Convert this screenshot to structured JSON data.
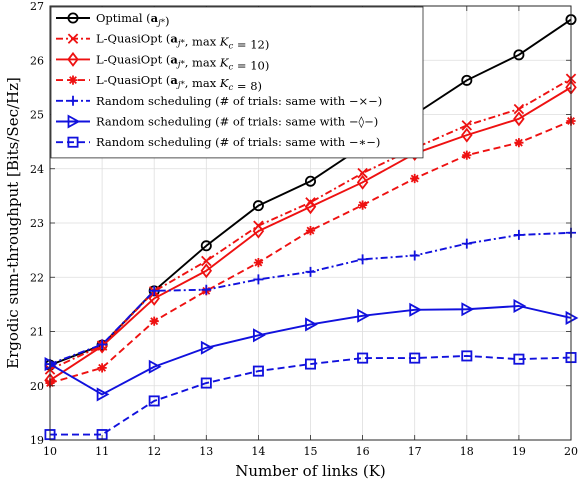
{
  "chart_data": {
    "type": "line",
    "title": "",
    "xlabel": "Number of links (K)",
    "ylabel": "Ergodic sum-throughput [Bits/Sec/Hz]",
    "xlim": [
      10,
      20
    ],
    "ylim": [
      19,
      27
    ],
    "x": [
      10,
      11,
      12,
      13,
      14,
      15,
      16,
      17,
      18,
      19,
      20
    ],
    "xticks": [
      "10",
      "11",
      "12",
      "13",
      "14",
      "15",
      "16",
      "17",
      "18",
      "19",
      "20"
    ],
    "yticks": [
      "19",
      "20",
      "21",
      "22",
      "23",
      "24",
      "25",
      "26",
      "27"
    ],
    "grid": true,
    "legend_position": "top-left",
    "series": [
      {
        "name": "Optimal (a_j*)",
        "color": "#000000",
        "style": "solid",
        "marker": "circle",
        "values": [
          20.38,
          20.75,
          21.75,
          22.58,
          23.32,
          23.77,
          24.41,
          25.0,
          25.63,
          26.1,
          26.75
        ]
      },
      {
        "name": "L-QuasiOpt (a_j*, max K_c = 12)",
        "color": "#ee1111",
        "style": "dashdot",
        "marker": "x",
        "values": [
          20.3,
          20.74,
          21.74,
          22.3,
          22.95,
          23.38,
          23.92,
          24.38,
          24.8,
          25.1,
          25.66
        ]
      },
      {
        "name": "L-QuasiOpt (a_j*, max K_c = 10)",
        "color": "#ee1111",
        "style": "solid",
        "marker": "diamond",
        "values": [
          20.1,
          20.73,
          21.61,
          22.12,
          22.85,
          23.3,
          23.75,
          24.28,
          24.62,
          24.92,
          25.5
        ]
      },
      {
        "name": "L-QuasiOpt (a_j*, max K_c = 8)",
        "color": "#ee1111",
        "style": "dashed",
        "marker": "asterisk",
        "values": [
          20.05,
          20.33,
          21.19,
          21.75,
          22.27,
          22.86,
          23.33,
          23.82,
          24.25,
          24.48,
          24.88
        ]
      },
      {
        "name": "Random scheduling (# of trials: same with −×−)",
        "color": "#1111dd",
        "style": "dashdot",
        "marker": "plus",
        "values": [
          20.4,
          20.76,
          21.75,
          21.77,
          21.96,
          22.1,
          22.33,
          22.4,
          22.62,
          22.78,
          22.82
        ]
      },
      {
        "name": "Random scheduling (# of trials: same with −◊−)",
        "color": "#1111dd",
        "style": "solid",
        "marker": "triangle-right",
        "values": [
          20.4,
          19.84,
          20.35,
          20.7,
          20.93,
          21.13,
          21.29,
          21.4,
          21.41,
          21.47,
          21.25
        ]
      },
      {
        "name": "Random scheduling (# of trials: same with −∗−)",
        "color": "#1111dd",
        "style": "dashed",
        "marker": "square",
        "values": [
          19.1,
          19.1,
          19.72,
          20.05,
          20.27,
          20.4,
          20.51,
          20.51,
          20.55,
          20.49,
          20.52
        ]
      }
    ]
  }
}
